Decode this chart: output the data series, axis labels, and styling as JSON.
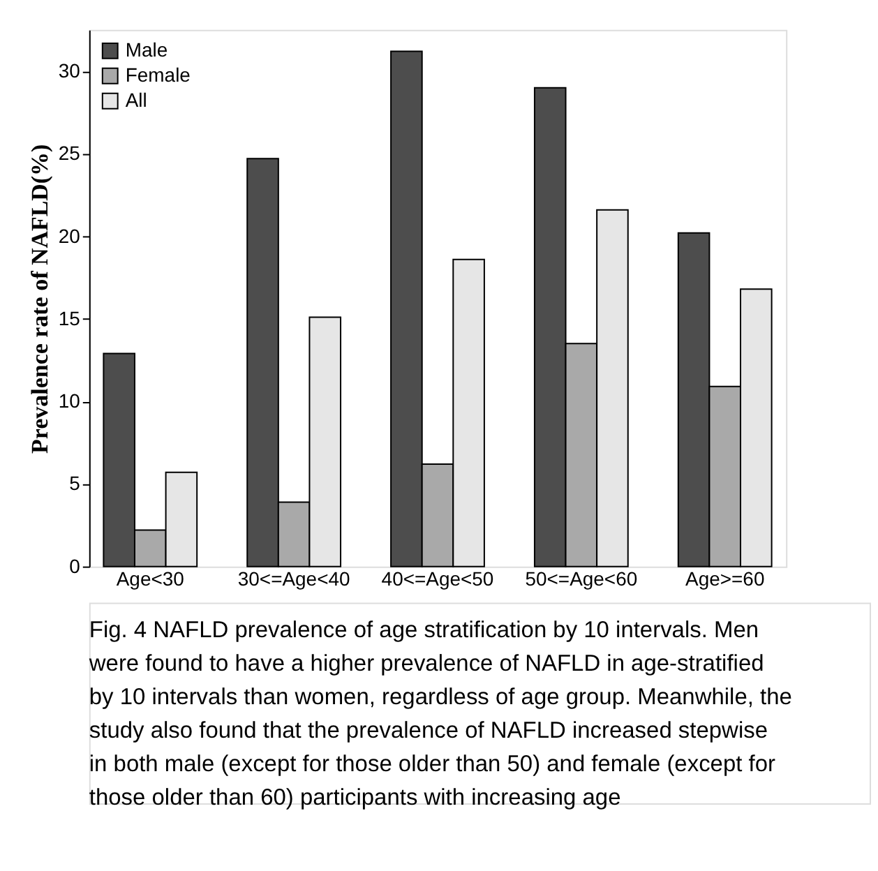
{
  "chart_data": {
    "type": "bar",
    "ylabel": "Prevalence rate of NAFLD(%)",
    "categories": [
      "Age<30",
      "30<=Age<40",
      "40<=Age<50",
      "50<=Age<60",
      "Age>=60"
    ],
    "series": [
      {
        "name": "Male",
        "color": "#4d4d4d",
        "values": [
          12.9,
          24.7,
          31.2,
          29.0,
          20.2
        ]
      },
      {
        "name": "Female",
        "color": "#a9a9a9",
        "values": [
          2.2,
          3.9,
          6.2,
          13.5,
          10.9
        ]
      },
      {
        "name": "All",
        "color": "#e6e6e6",
        "values": [
          5.7,
          15.1,
          18.6,
          21.6,
          16.8
        ]
      }
    ],
    "ylim": [
      0,
      32.5
    ],
    "yticks": [
      0,
      5,
      10,
      15,
      20,
      25,
      30
    ],
    "grid": false,
    "legend": "top left",
    "annotations": [
      "Fig. 4  NAFLD prevalence of age stratification by 10 intervals. Men",
      "were found to have a higher prevalence of NAFLD in age-stratified",
      "by 10 intervals than women, regardless of age group. Meanwhile, the",
      "study also found that the prevalence of NAFLD increased stepwise",
      "in both male (except for those older than 50) and female (except for",
      "those older than 60) participants with increasing age"
    ]
  }
}
